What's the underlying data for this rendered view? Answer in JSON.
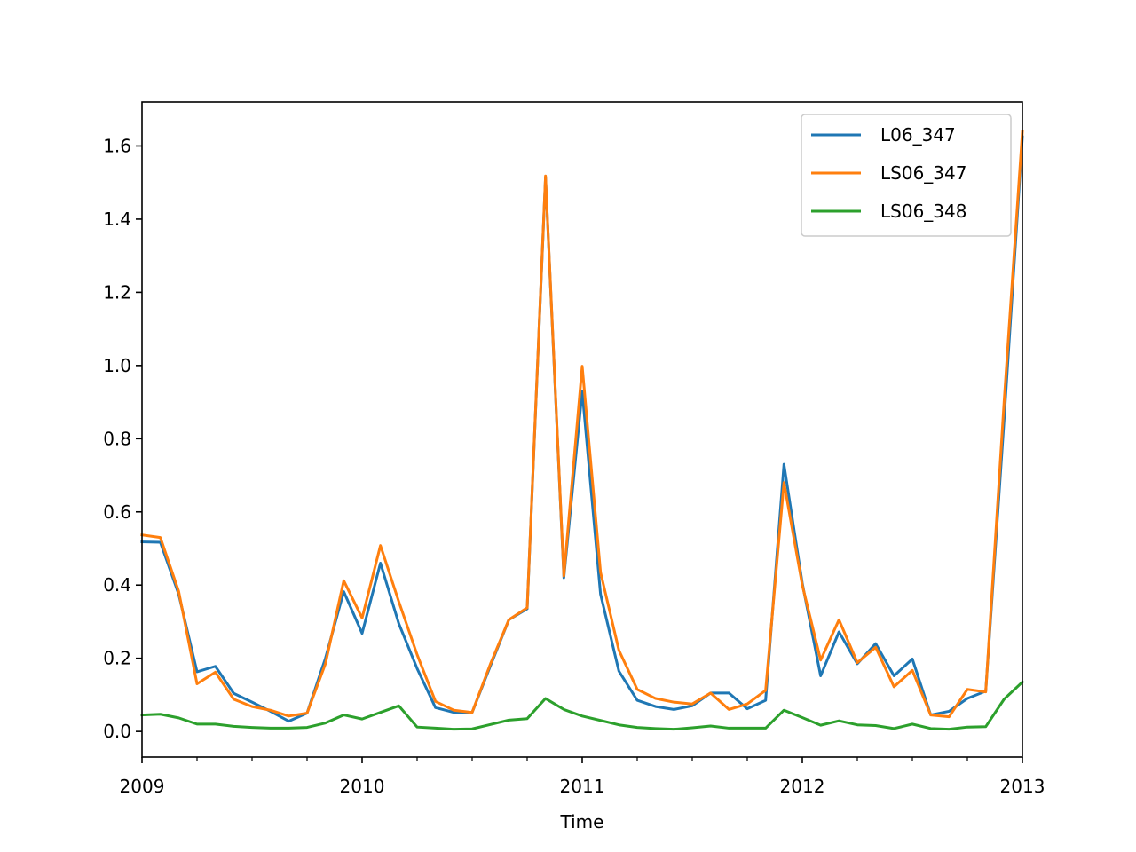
{
  "chart_data": {
    "type": "line",
    "title": "",
    "xlabel": "Time",
    "ylabel": "",
    "x_start": "2009-01",
    "xlim": [
      "2009-01",
      "2013-01"
    ],
    "ylim": [
      -0.07,
      1.72
    ],
    "x_major_ticks": [
      {
        "date": "2009-01",
        "label": "2009"
      },
      {
        "date": "2010-01",
        "label": "2010"
      },
      {
        "date": "2011-01",
        "label": "2011"
      },
      {
        "date": "2012-01",
        "label": "2012"
      },
      {
        "date": "2013-01",
        "label": "2013"
      }
    ],
    "x_minor_ticks": [
      "2009-04",
      "2009-07",
      "2009-10",
      "2010-04",
      "2010-07",
      "2010-10",
      "2011-04",
      "2011-07",
      "2011-10",
      "2012-04",
      "2012-07",
      "2012-10"
    ],
    "y_ticks": [
      {
        "value": 0.0,
        "label": "0.0"
      },
      {
        "value": 0.2,
        "label": "0.2"
      },
      {
        "value": 0.4,
        "label": "0.4"
      },
      {
        "value": 0.6,
        "label": "0.6"
      },
      {
        "value": 0.8,
        "label": "0.8"
      },
      {
        "value": 1.0,
        "label": "1.0"
      },
      {
        "value": 1.2,
        "label": "1.2"
      },
      {
        "value": 1.4,
        "label": "1.4"
      },
      {
        "value": 1.6,
        "label": "1.6"
      }
    ],
    "legend_position": "top-right",
    "grid": false,
    "series": [
      {
        "name": "L06_347",
        "color": "#1f77b4",
        "values": [
          0.518,
          0.517,
          0.375,
          0.163,
          0.178,
          0.104,
          0.08,
          0.055,
          0.028,
          0.05,
          0.2,
          0.382,
          0.268,
          0.46,
          0.295,
          0.172,
          0.065,
          0.052,
          0.052,
          0.18,
          0.305,
          0.335,
          1.515,
          0.42,
          0.93,
          0.375,
          0.165,
          0.085,
          0.068,
          0.06,
          0.07,
          0.105,
          0.105,
          0.062,
          0.085,
          0.73,
          0.405,
          0.152,
          0.272,
          0.185,
          0.24,
          0.152,
          0.198,
          0.045,
          0.055,
          0.09,
          0.11,
          0.85,
          1.625
        ]
      },
      {
        "name": "LS06_347",
        "color": "#ff7f0e",
        "values": [
          0.537,
          0.53,
          0.383,
          0.13,
          0.162,
          0.088,
          0.068,
          0.058,
          0.042,
          0.05,
          0.185,
          0.412,
          0.31,
          0.508,
          0.355,
          0.21,
          0.082,
          0.058,
          0.052,
          0.185,
          0.305,
          0.338,
          1.518,
          0.425,
          0.998,
          0.435,
          0.222,
          0.115,
          0.09,
          0.08,
          0.075,
          0.105,
          0.06,
          0.075,
          0.112,
          0.68,
          0.4,
          0.195,
          0.305,
          0.188,
          0.23,
          0.122,
          0.167,
          0.045,
          0.04,
          0.115,
          0.108,
          0.9,
          1.64
        ]
      },
      {
        "name": "LS06_348",
        "color": "#2ca02c",
        "values": [
          0.045,
          0.047,
          0.037,
          0.02,
          0.02,
          0.014,
          0.011,
          0.009,
          0.009,
          0.011,
          0.023,
          0.045,
          0.034,
          0.052,
          0.07,
          0.012,
          0.009,
          0.006,
          0.007,
          0.019,
          0.031,
          0.035,
          0.09,
          0.06,
          0.042,
          0.03,
          0.018,
          0.011,
          0.008,
          0.006,
          0.01,
          0.015,
          0.009,
          0.009,
          0.009,
          0.058,
          0.038,
          0.017,
          0.029,
          0.018,
          0.016,
          0.008,
          0.02,
          0.008,
          0.006,
          0.012,
          0.013,
          0.088,
          0.135
        ]
      }
    ]
  }
}
